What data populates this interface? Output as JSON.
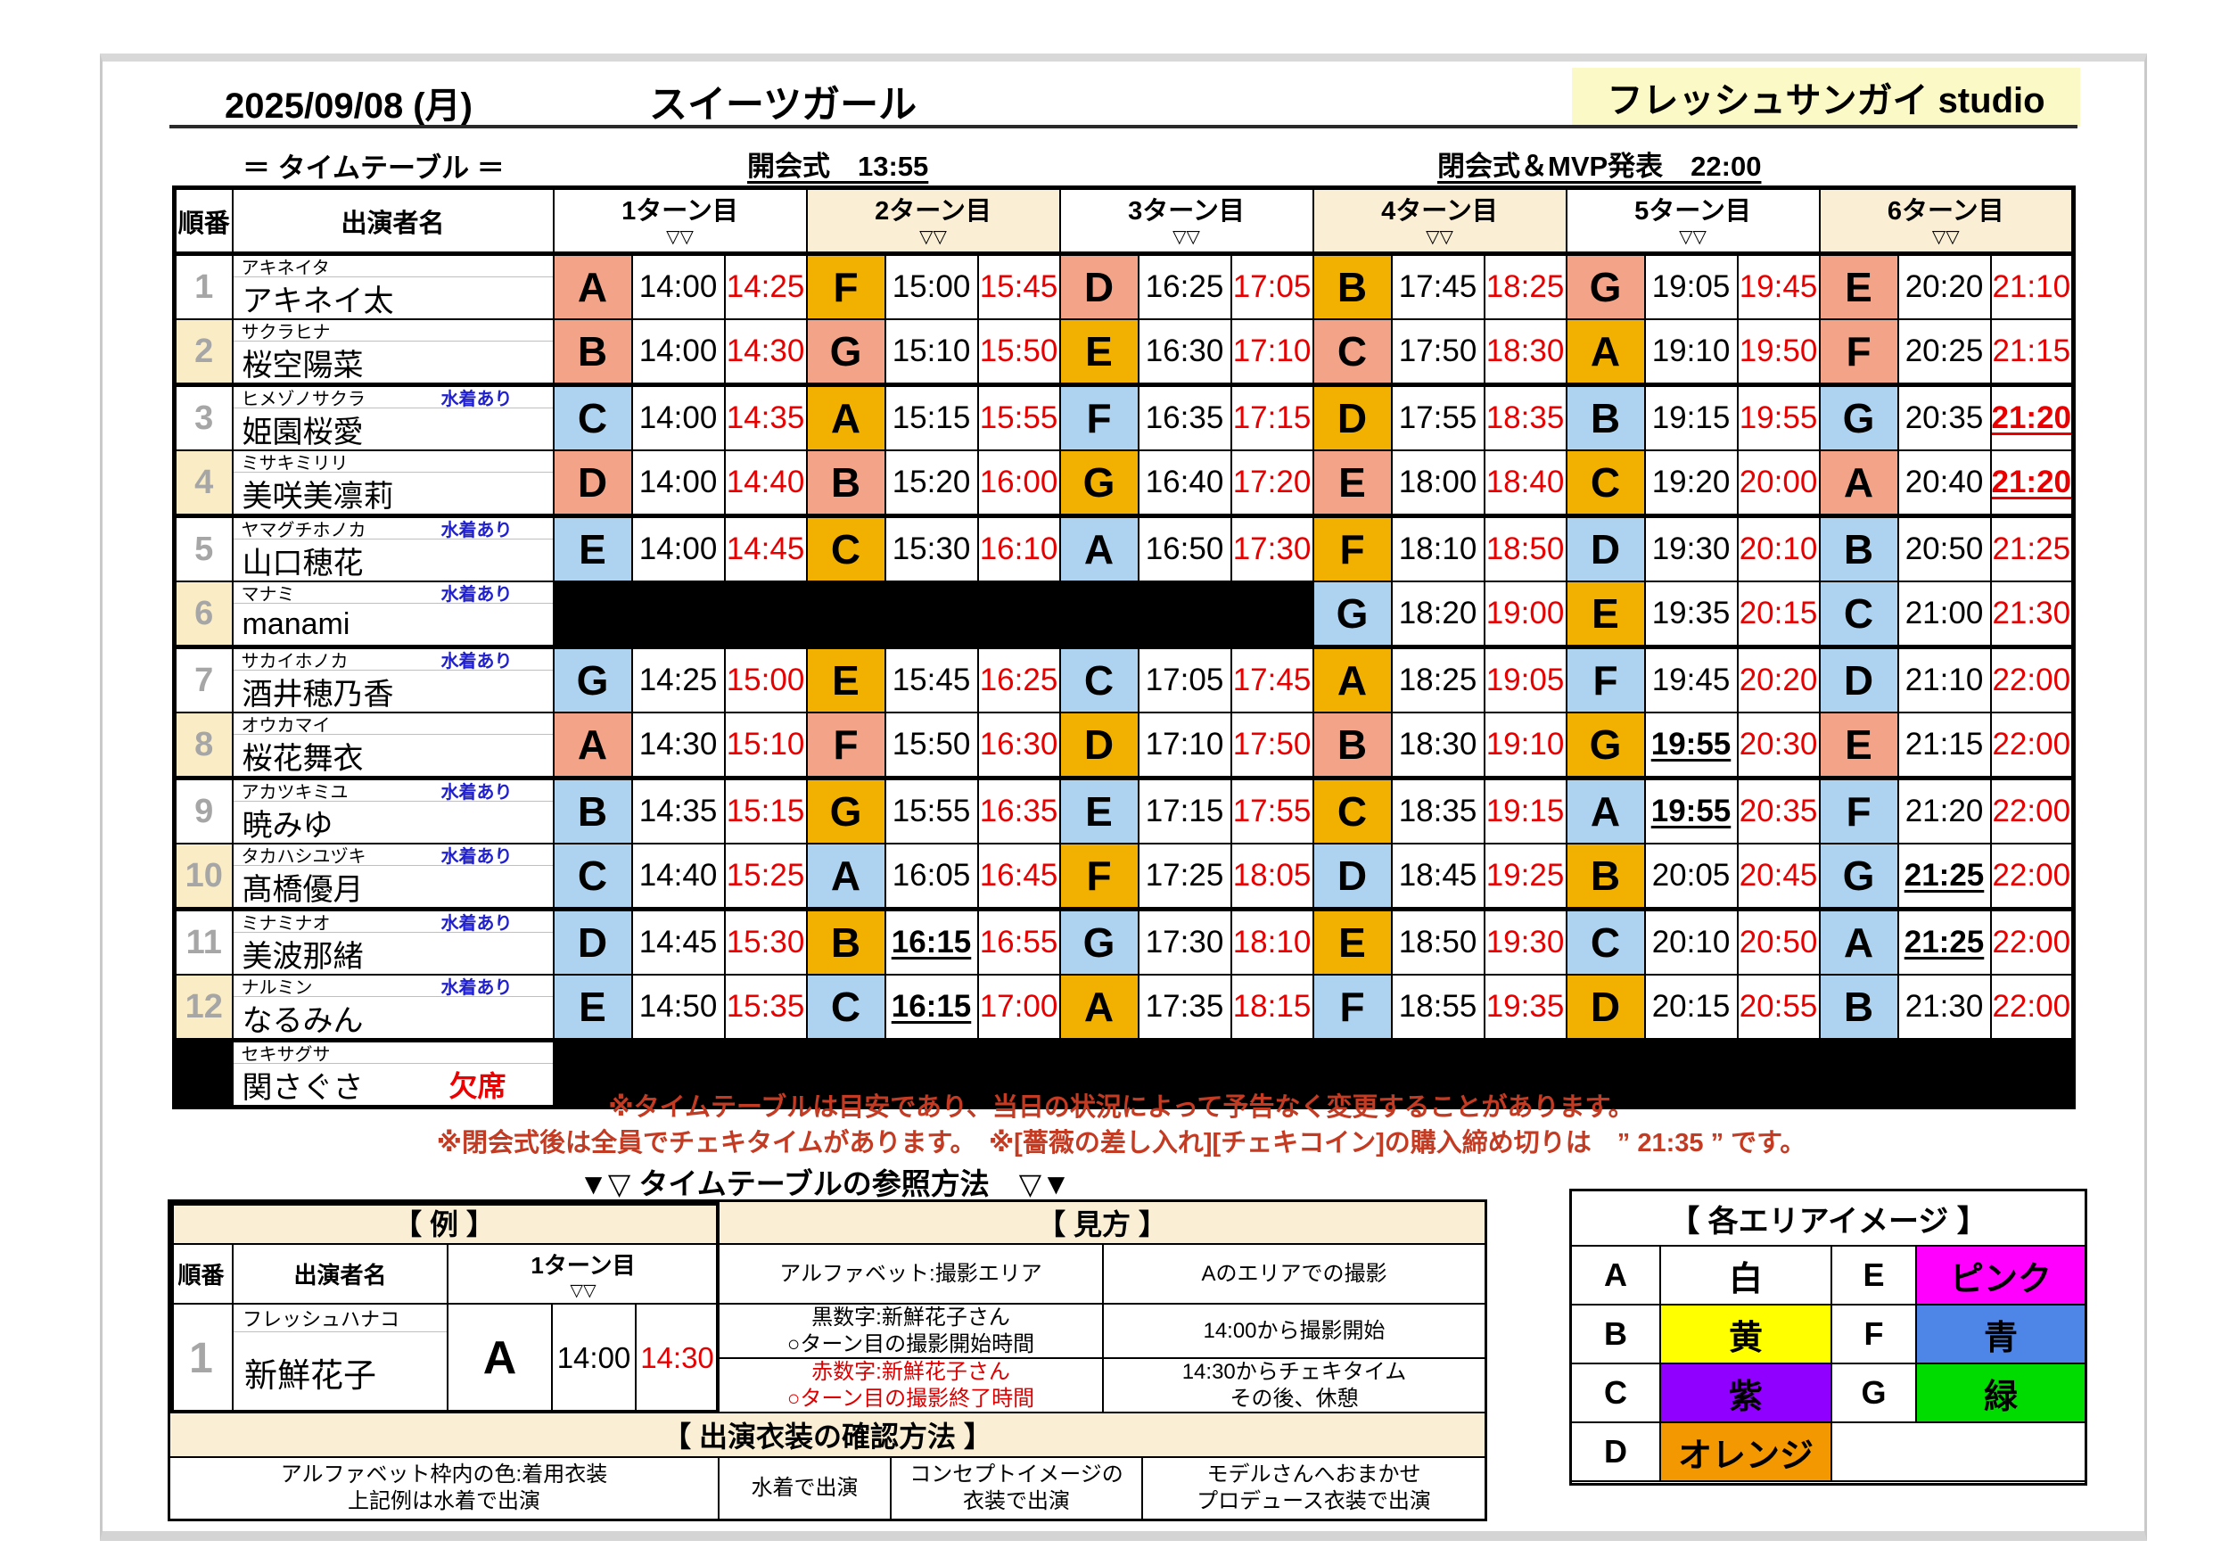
{
  "page": {
    "date": "2025/09/08 (月)",
    "event_title": "スイーツガール",
    "studio": "フレッシュサンガイ studio",
    "timetable_label": "＝ タイムテーブル ＝",
    "opening": "開会式　13:55",
    "closing": "閉会式＆MVP発表　22:00"
  },
  "colors": {
    "salmon": "#F3A488",
    "orange": "#F2B100",
    "blue": "#AED3F0",
    "beige": "#FAEFD5",
    "row_beige": "#FAEDC6",
    "studio_bg": "#FBF9C5",
    "note_red": "#C23B22",
    "time_red": "#E80000",
    "swim_blue": "#2020CC",
    "number_gray": "#A6A6A6"
  },
  "schedule": {
    "order_header": "順番",
    "name_header": "出演者名",
    "turn_headers": [
      "1ターン目",
      "2ターン目",
      "3ターン目",
      "4ターン目",
      "5ターン目",
      "6ターン目"
    ],
    "turn_sub": "▽▽",
    "swim_note": "水着あり",
    "absent_note": "欠席",
    "rows": [
      {
        "no": "1",
        "furigana": "アキネイタ",
        "name": "アキネイ太",
        "swim": false,
        "absent": false,
        "turns": [
          {
            "a": "A",
            "c": "s",
            "st": "14:00",
            "en": "14:25"
          },
          {
            "a": "F",
            "c": "o",
            "st": "15:00",
            "en": "15:45"
          },
          {
            "a": "D",
            "c": "s",
            "st": "16:25",
            "en": "17:05"
          },
          {
            "a": "B",
            "c": "o",
            "st": "17:45",
            "en": "18:25"
          },
          {
            "a": "G",
            "c": "s",
            "st": "19:05",
            "en": "19:45"
          },
          {
            "a": "E",
            "c": "s",
            "st": "20:20",
            "en": "21:10"
          }
        ]
      },
      {
        "no": "2",
        "furigana": "サクラヒナ",
        "name": "桜空陽菜",
        "swim": false,
        "absent": false,
        "turns": [
          {
            "a": "B",
            "c": "s",
            "st": "14:00",
            "en": "14:30"
          },
          {
            "a": "G",
            "c": "s",
            "st": "15:10",
            "en": "15:50"
          },
          {
            "a": "E",
            "c": "o",
            "st": "16:30",
            "en": "17:10"
          },
          {
            "a": "C",
            "c": "s",
            "st": "17:50",
            "en": "18:30"
          },
          {
            "a": "A",
            "c": "o",
            "st": "19:10",
            "en": "19:50"
          },
          {
            "a": "F",
            "c": "s",
            "st": "20:25",
            "en": "21:15"
          }
        ]
      },
      {
        "no": "3",
        "furigana": "ヒメゾノサクラ",
        "name": "姫園桜愛",
        "swim": true,
        "absent": false,
        "turns": [
          {
            "a": "C",
            "c": "b",
            "st": "14:00",
            "en": "14:35"
          },
          {
            "a": "A",
            "c": "o",
            "st": "15:15",
            "en": "15:55"
          },
          {
            "a": "F",
            "c": "b",
            "st": "16:35",
            "en": "17:15"
          },
          {
            "a": "D",
            "c": "o",
            "st": "17:55",
            "en": "18:35"
          },
          {
            "a": "B",
            "c": "b",
            "st": "19:15",
            "en": "19:55"
          },
          {
            "a": "G",
            "c": "b",
            "st": "20:35",
            "en": "21:20",
            "eu": true
          }
        ]
      },
      {
        "no": "4",
        "furigana": "ミサキミリリ",
        "name": "美咲美凛莉",
        "swim": false,
        "absent": false,
        "turns": [
          {
            "a": "D",
            "c": "s",
            "st": "14:00",
            "en": "14:40"
          },
          {
            "a": "B",
            "c": "s",
            "st": "15:20",
            "en": "16:00"
          },
          {
            "a": "G",
            "c": "o",
            "st": "16:40",
            "en": "17:20"
          },
          {
            "a": "E",
            "c": "s",
            "st": "18:00",
            "en": "18:40"
          },
          {
            "a": "C",
            "c": "o",
            "st": "19:20",
            "en": "20:00"
          },
          {
            "a": "A",
            "c": "s",
            "st": "20:40",
            "en": "21:20",
            "eu": true
          }
        ]
      },
      {
        "no": "5",
        "furigana": "ヤマグチホノカ",
        "name": "山口穂花",
        "swim": true,
        "absent": false,
        "turns": [
          {
            "a": "E",
            "c": "b",
            "st": "14:00",
            "en": "14:45"
          },
          {
            "a": "C",
            "c": "o",
            "st": "15:30",
            "en": "16:10"
          },
          {
            "a": "A",
            "c": "b",
            "st": "16:50",
            "en": "17:30"
          },
          {
            "a": "F",
            "c": "o",
            "st": "18:10",
            "en": "18:50"
          },
          {
            "a": "D",
            "c": "b",
            "st": "19:30",
            "en": "20:10"
          },
          {
            "a": "B",
            "c": "b",
            "st": "20:50",
            "en": "21:25"
          }
        ]
      },
      {
        "no": "6",
        "furigana": "マナミ",
        "name": "manami",
        "swim": true,
        "absent": false,
        "turns": [
          null,
          null,
          null,
          {
            "a": "G",
            "c": "b",
            "st": "18:20",
            "en": "19:00"
          },
          {
            "a": "E",
            "c": "o",
            "st": "19:35",
            "en": "20:15"
          },
          {
            "a": "C",
            "c": "b",
            "st": "21:00",
            "en": "21:30"
          }
        ]
      },
      {
        "no": "7",
        "furigana": "サカイホノカ",
        "name": "酒井穂乃香",
        "swim": true,
        "absent": false,
        "turns": [
          {
            "a": "G",
            "c": "b",
            "st": "14:25",
            "en": "15:00"
          },
          {
            "a": "E",
            "c": "o",
            "st": "15:45",
            "en": "16:25"
          },
          {
            "a": "C",
            "c": "b",
            "st": "17:05",
            "en": "17:45"
          },
          {
            "a": "A",
            "c": "o",
            "st": "18:25",
            "en": "19:05"
          },
          {
            "a": "F",
            "c": "b",
            "st": "19:45",
            "en": "20:20"
          },
          {
            "a": "D",
            "c": "b",
            "st": "21:10",
            "en": "22:00"
          }
        ]
      },
      {
        "no": "8",
        "furigana": "オウカマイ",
        "name": "桜花舞衣",
        "swim": false,
        "absent": false,
        "turns": [
          {
            "a": "A",
            "c": "s",
            "st": "14:30",
            "en": "15:10"
          },
          {
            "a": "F",
            "c": "s",
            "st": "15:50",
            "en": "16:30"
          },
          {
            "a": "D",
            "c": "o",
            "st": "17:10",
            "en": "17:50"
          },
          {
            "a": "B",
            "c": "s",
            "st": "18:30",
            "en": "19:10"
          },
          {
            "a": "G",
            "c": "o",
            "st": "19:55",
            "en": "20:30",
            "su": true
          },
          {
            "a": "E",
            "c": "s",
            "st": "21:15",
            "en": "22:00"
          }
        ]
      },
      {
        "no": "9",
        "furigana": "アカツキミユ",
        "name": "暁みゆ",
        "swim": true,
        "absent": false,
        "turns": [
          {
            "a": "B",
            "c": "b",
            "st": "14:35",
            "en": "15:15"
          },
          {
            "a": "G",
            "c": "o",
            "st": "15:55",
            "en": "16:35"
          },
          {
            "a": "E",
            "c": "b",
            "st": "17:15",
            "en": "17:55"
          },
          {
            "a": "C",
            "c": "o",
            "st": "18:35",
            "en": "19:15"
          },
          {
            "a": "A",
            "c": "b",
            "st": "19:55",
            "en": "20:35",
            "su": true
          },
          {
            "a": "F",
            "c": "b",
            "st": "21:20",
            "en": "22:00"
          }
        ]
      },
      {
        "no": "10",
        "furigana": "タカハシユヅキ",
        "name": "髙橋優月",
        "swim": true,
        "absent": false,
        "turns": [
          {
            "a": "C",
            "c": "b",
            "st": "14:40",
            "en": "15:25"
          },
          {
            "a": "A",
            "c": "b",
            "st": "16:05",
            "en": "16:45"
          },
          {
            "a": "F",
            "c": "o",
            "st": "17:25",
            "en": "18:05"
          },
          {
            "a": "D",
            "c": "b",
            "st": "18:45",
            "en": "19:25"
          },
          {
            "a": "B",
            "c": "o",
            "st": "20:05",
            "en": "20:45"
          },
          {
            "a": "G",
            "c": "b",
            "st": "21:25",
            "en": "22:00",
            "su": true
          }
        ]
      },
      {
        "no": "11",
        "furigana": "ミナミナオ",
        "name": "美波那緒",
        "swim": true,
        "absent": false,
        "turns": [
          {
            "a": "D",
            "c": "b",
            "st": "14:45",
            "en": "15:30"
          },
          {
            "a": "B",
            "c": "o",
            "st": "16:15",
            "en": "16:55",
            "su": true
          },
          {
            "a": "G",
            "c": "b",
            "st": "17:30",
            "en": "18:10"
          },
          {
            "a": "E",
            "c": "o",
            "st": "18:50",
            "en": "19:30"
          },
          {
            "a": "C",
            "c": "b",
            "st": "20:10",
            "en": "20:50"
          },
          {
            "a": "A",
            "c": "b",
            "st": "21:25",
            "en": "22:00",
            "su": true
          }
        ]
      },
      {
        "no": "12",
        "furigana": "ナルミン",
        "name": "なるみん",
        "swim": true,
        "absent": false,
        "turns": [
          {
            "a": "E",
            "c": "b",
            "st": "14:50",
            "en": "15:35"
          },
          {
            "a": "C",
            "c": "b",
            "st": "16:15",
            "en": "17:00",
            "su": true
          },
          {
            "a": "A",
            "c": "o",
            "st": "17:35",
            "en": "18:15"
          },
          {
            "a": "F",
            "c": "b",
            "st": "18:55",
            "en": "19:35"
          },
          {
            "a": "D",
            "c": "o",
            "st": "20:15",
            "en": "20:55"
          },
          {
            "a": "B",
            "c": "b",
            "st": "21:30",
            "en": "22:00"
          }
        ]
      },
      {
        "no": "",
        "furigana": "セキサグサ",
        "name": "関さぐさ",
        "swim": false,
        "absent": true,
        "turns": null
      }
    ]
  },
  "notes": [
    "※タイムテーブルは目安であり、当日の状況によって予告なく変更することがあります。",
    "※閉会式後は全員でチェキタイムがあります。　※[薔薇の差し入れ][チェキコイン]の購入締め切りは　” 21:35 ” です。"
  ],
  "reference": {
    "title": "▼▽ タイムテーブルの参照方法　▽▼",
    "example_header": "【 例 】",
    "howto_header": "【 見方 】",
    "example": {
      "order_header": "順番",
      "name_header": "出演者名",
      "turn_header": "1ターン目",
      "turn_sub": "▽▽",
      "no": "1",
      "furigana": "フレッシュハナコ",
      "name": "新鮮花子",
      "area": "A",
      "start": "14:00",
      "end": "14:30"
    },
    "howto_rows": [
      {
        "left": [
          "アルファベット:撮影エリア"
        ],
        "right": [
          "Aのエリアでの撮影"
        ],
        "red": false
      },
      {
        "left": [
          "黒数字:新鮮花子さん",
          "○ターン目の撮影開始時間"
        ],
        "right": [
          "14:00から撮影開始"
        ],
        "red": false
      },
      {
        "left": [
          "赤数字:新鮮花子さん",
          "○ターン目の撮影終了時間"
        ],
        "right": [
          "14:30からチェキタイム",
          "その後、休憩"
        ],
        "red": true
      }
    ],
    "costume_header": "【 出演衣装の確認方法 】",
    "costume_note": [
      "アルファベット枠内の色:着用衣装",
      "上記例は水着で出演"
    ],
    "costume_legend": [
      {
        "label": [
          "水着で出演"
        ],
        "color": "b"
      },
      {
        "label": [
          "コンセプトイメージの",
          "衣装で出演"
        ],
        "color": "o"
      },
      {
        "label": [
          "モデルさんへおまかせ",
          "プロデュース衣装で出演"
        ],
        "color": "s"
      }
    ]
  },
  "areas": {
    "title": "【 各エリアイメージ 】",
    "items": [
      {
        "letter": "A",
        "label": "白",
        "hex": "#FFFFFF"
      },
      {
        "letter": "E",
        "label": "ピンク",
        "hex": "#FF00FF"
      },
      {
        "letter": "B",
        "label": "黄",
        "hex": "#FFFF00"
      },
      {
        "letter": "F",
        "label": "青",
        "hex": "#4E86E8"
      },
      {
        "letter": "C",
        "label": "紫",
        "hex": "#8F00FF"
      },
      {
        "letter": "G",
        "label": "緑",
        "hex": "#00DB00"
      },
      {
        "letter": "D",
        "label": "オレンジ",
        "hex": "#F39800"
      }
    ]
  }
}
